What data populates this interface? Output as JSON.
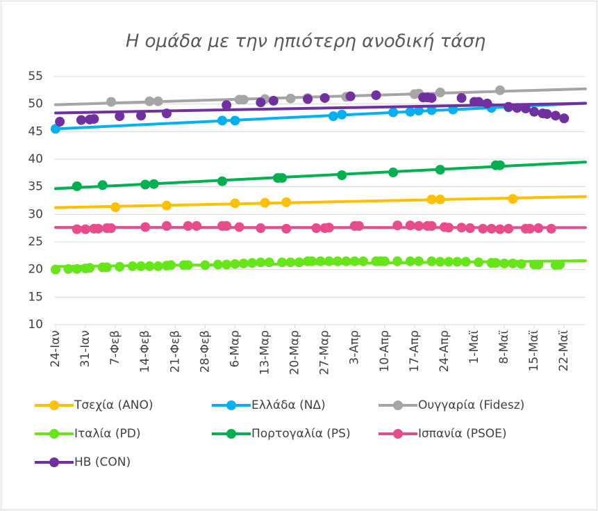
{
  "chart_data": {
    "type": "scatter",
    "title": "Η ομάδα με την ηπιότερη ανοδική τάση",
    "xlim": [
      0,
      124
    ],
    "xticks": [
      {
        "value": 0,
        "label": "24-Ιαν"
      },
      {
        "value": 7,
        "label": "31-Ιαν"
      },
      {
        "value": 14,
        "label": "7-Φεβ"
      },
      {
        "value": 21,
        "label": "14-Φεβ"
      },
      {
        "value": 28,
        "label": "21-Φεβ"
      },
      {
        "value": 35,
        "label": "28-Φεβ"
      },
      {
        "value": 42,
        "label": "6-Μαρ"
      },
      {
        "value": 49,
        "label": "13-Μαρ"
      },
      {
        "value": 56,
        "label": "20-Μαρ"
      },
      {
        "value": 63,
        "label": "27-Μαρ"
      },
      {
        "value": 70,
        "label": "3-Απρ"
      },
      {
        "value": 77,
        "label": "10-Απρ"
      },
      {
        "value": 84,
        "label": "17-Απρ"
      },
      {
        "value": 91,
        "label": "24-Απρ"
      },
      {
        "value": 98,
        "label": "1-Μαϊ"
      },
      {
        "value": 105,
        "label": "8-Μαϊ"
      },
      {
        "value": 112,
        "label": "15-Μαϊ"
      },
      {
        "value": 119,
        "label": "22-Μαϊ"
      }
    ],
    "ylim": [
      10,
      55
    ],
    "yticks": [
      10,
      15,
      20,
      25,
      30,
      35,
      40,
      45,
      50,
      55
    ],
    "grid": true,
    "trendline": "linear",
    "legend": "bottom",
    "series": [
      {
        "name": "Τσεχία (ANO)",
        "color": "#ffc000",
        "x": [
          14,
          26,
          42,
          49,
          54,
          88,
          90,
          107
        ],
        "values": [
          31.3,
          31.6,
          32.0,
          32.1,
          32.2,
          32.7,
          32.7,
          32.8
        ]
      },
      {
        "name": "Ελλάδα (ΝΔ)",
        "color": "#00b0f0",
        "x": [
          0,
          39,
          42,
          65,
          67,
          79,
          83,
          85,
          88,
          93,
          102,
          106
        ],
        "values": [
          45.5,
          47.0,
          47.0,
          47.8,
          48.1,
          48.5,
          48.6,
          48.8,
          48.9,
          49.0,
          49.3,
          49.4
        ]
      },
      {
        "name": "Ουγγαρία (Fidesz)",
        "color": "#a5a5a5",
        "x": [
          13,
          22,
          24,
          43,
          44,
          49,
          55,
          59,
          68,
          84,
          85,
          90,
          104
        ],
        "values": [
          50.4,
          50.5,
          50.5,
          50.8,
          50.8,
          50.9,
          51.0,
          51.1,
          51.3,
          51.8,
          51.9,
          52.1,
          52.5
        ]
      },
      {
        "name": "Ιταλία (PD)",
        "color": "#66e619",
        "x": [
          0,
          3,
          5,
          7,
          8,
          11,
          12,
          15,
          18,
          20,
          22,
          24,
          26,
          27,
          30,
          31,
          35,
          38,
          40,
          42,
          44,
          46,
          48,
          50,
          53,
          55,
          57,
          59,
          60,
          62,
          64,
          66,
          68,
          70,
          72,
          75,
          76,
          77,
          80,
          83,
          85,
          88,
          90,
          92,
          94,
          96,
          99,
          102,
          103,
          105,
          107,
          109,
          112,
          113,
          117,
          118
        ],
        "values": [
          20.0,
          20.1,
          20.1,
          20.2,
          20.3,
          20.4,
          20.4,
          20.5,
          20.6,
          20.6,
          20.6,
          20.6,
          20.7,
          20.8,
          20.8,
          20.8,
          20.8,
          20.9,
          20.9,
          21.0,
          21.1,
          21.2,
          21.3,
          21.3,
          21.3,
          21.3,
          21.3,
          21.5,
          21.5,
          21.5,
          21.5,
          21.5,
          21.5,
          21.5,
          21.5,
          21.5,
          21.5,
          21.5,
          21.5,
          21.5,
          21.5,
          21.5,
          21.4,
          21.4,
          21.4,
          21.4,
          21.3,
          21.2,
          21.2,
          21.1,
          21.1,
          21.0,
          20.9,
          20.9,
          20.8,
          20.9
        ]
      },
      {
        "name": "Πορτογαλία (PS)",
        "color": "#00b050",
        "x": [
          5,
          11,
          21,
          23,
          39,
          52,
          53,
          67,
          79,
          90,
          103,
          104
        ],
        "values": [
          35.1,
          35.3,
          35.4,
          35.5,
          36.0,
          36.6,
          36.6,
          37.1,
          37.6,
          38.1,
          38.9,
          38.9
        ]
      },
      {
        "name": "Ισπανία (PSOE)",
        "color": "#e84c8b",
        "x": [
          5,
          7,
          9,
          10,
          12,
          13,
          21,
          26,
          31,
          33,
          39,
          40,
          43,
          48,
          54,
          61,
          63,
          64,
          70,
          71,
          80,
          83,
          85,
          87,
          88,
          91,
          92,
          95,
          97,
          100,
          102,
          104,
          106,
          110,
          111,
          113,
          116
        ],
        "values": [
          27.3,
          27.3,
          27.4,
          27.4,
          27.5,
          27.5,
          27.7,
          27.9,
          27.9,
          27.9,
          27.9,
          27.9,
          27.7,
          27.5,
          27.4,
          27.5,
          27.5,
          27.6,
          27.9,
          27.9,
          28.0,
          28.0,
          27.9,
          27.9,
          27.9,
          27.7,
          27.6,
          27.6,
          27.5,
          27.4,
          27.4,
          27.3,
          27.4,
          27.4,
          27.4,
          27.5,
          27.4
        ]
      },
      {
        "name": "ΗΒ (CON)",
        "color": "#7030a0",
        "x": [
          1,
          6,
          8,
          9,
          15,
          20,
          26,
          40,
          48,
          51,
          59,
          63,
          69,
          75,
          86,
          87,
          88,
          95,
          98,
          99,
          101,
          106,
          108,
          110,
          112,
          114,
          115,
          117,
          119
        ],
        "values": [
          46.8,
          47.1,
          47.2,
          47.3,
          47.8,
          47.9,
          48.3,
          49.8,
          50.3,
          50.6,
          50.9,
          51.1,
          51.4,
          51.6,
          51.2,
          51.2,
          51.1,
          51.1,
          50.4,
          50.4,
          50.1,
          49.5,
          49.3,
          49.2,
          48.6,
          48.3,
          48.2,
          47.9,
          47.4
        ]
      }
    ]
  }
}
